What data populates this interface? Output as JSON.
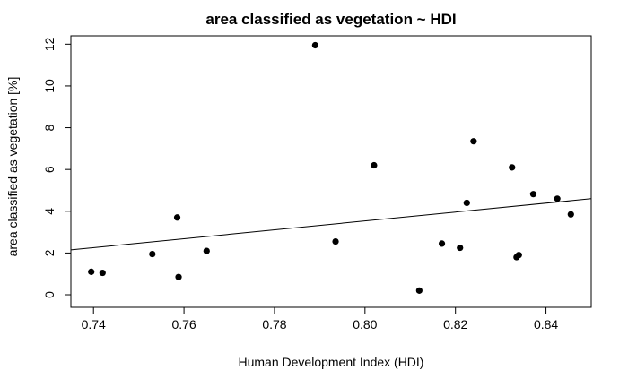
{
  "chart_data": {
    "type": "scatter",
    "title": "area classified as vegetation ~ HDI",
    "xlabel": "Human Development Index (HDI)",
    "ylabel": "area classified as vegetation [%]",
    "xlim": [
      0.735,
      0.85
    ],
    "ylim": [
      -0.6,
      12.4
    ],
    "xticks": [
      0.74,
      0.76,
      0.78,
      0.8,
      0.82,
      0.84
    ],
    "xtick_labels": [
      "0.74",
      "0.76",
      "0.78",
      "0.80",
      "0.82",
      "0.84"
    ],
    "yticks": [
      0,
      2,
      4,
      6,
      8,
      10,
      12
    ],
    "ytick_labels": [
      "0",
      "2",
      "4",
      "6",
      "8",
      "10",
      "12"
    ],
    "grid": false,
    "points": [
      {
        "x": 0.7395,
        "y": 1.1
      },
      {
        "x": 0.742,
        "y": 1.05
      },
      {
        "x": 0.753,
        "y": 1.95
      },
      {
        "x": 0.7585,
        "y": 3.7
      },
      {
        "x": 0.7588,
        "y": 0.85
      },
      {
        "x": 0.765,
        "y": 2.1
      },
      {
        "x": 0.789,
        "y": 11.95
      },
      {
        "x": 0.7935,
        "y": 2.55
      },
      {
        "x": 0.802,
        "y": 6.2
      },
      {
        "x": 0.812,
        "y": 0.2
      },
      {
        "x": 0.817,
        "y": 2.45
      },
      {
        "x": 0.821,
        "y": 2.25
      },
      {
        "x": 0.8225,
        "y": 4.4
      },
      {
        "x": 0.824,
        "y": 7.35
      },
      {
        "x": 0.8325,
        "y": 6.1
      },
      {
        "x": 0.8335,
        "y": 1.8
      },
      {
        "x": 0.834,
        "y": 1.9
      },
      {
        "x": 0.8372,
        "y": 4.82
      },
      {
        "x": 0.8425,
        "y": 4.6
      },
      {
        "x": 0.8455,
        "y": 3.85
      }
    ],
    "regression_line": {
      "x": [
        0.735,
        0.85
      ],
      "y": [
        2.15,
        4.6
      ]
    }
  }
}
